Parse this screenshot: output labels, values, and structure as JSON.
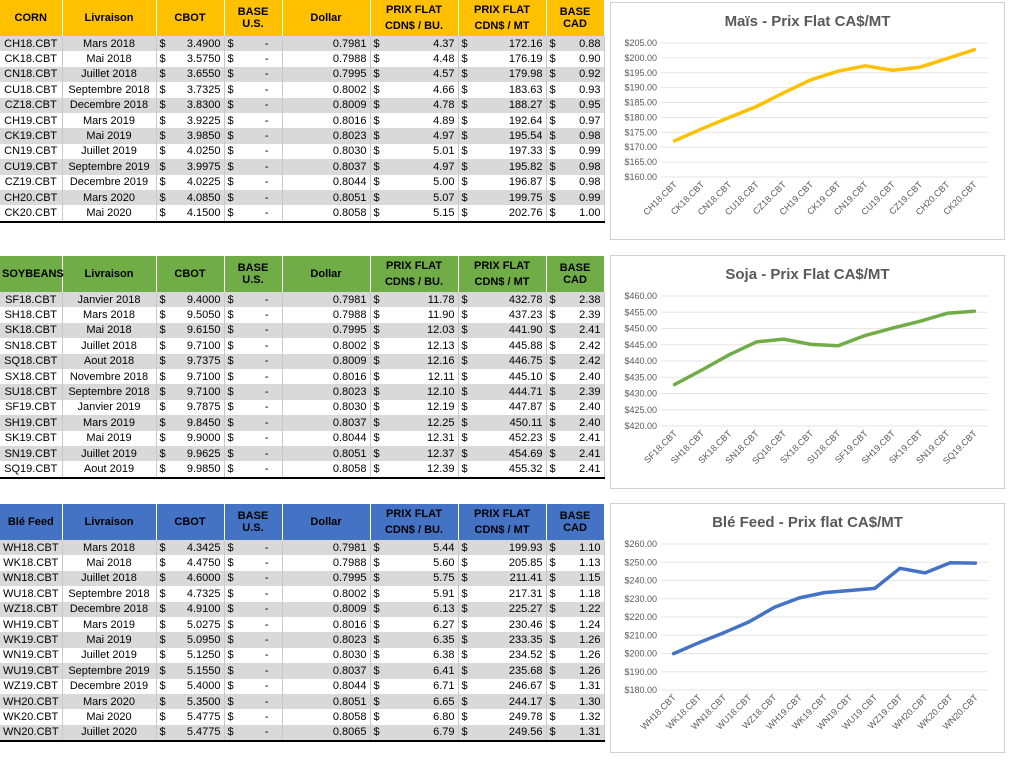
{
  "colors": {
    "corn": "#ffc000",
    "soy": "#70ad47",
    "wheat": "#4472c4"
  },
  "corn": {
    "headers": [
      "CORN",
      "Livraison",
      "CBOT",
      "BASE U.S.",
      "Dollar",
      "PRIX FLAT",
      "CDN$ / BU.",
      "PRIX FLAT",
      "CDN$ / MT",
      "BASE CAD"
    ],
    "rows": [
      [
        "CH18.CBT",
        "Mars 2018",
        "$",
        "3.4900",
        "$",
        "-",
        "0.7981",
        "$",
        "4.37",
        "$",
        "172.16",
        "$",
        "0.88"
      ],
      [
        "CK18.CBT",
        "Mai 2018",
        "$",
        "3.5750",
        "$",
        "-",
        "0.7988",
        "$",
        "4.48",
        "$",
        "176.19",
        "$",
        "0.90"
      ],
      [
        "CN18.CBT",
        "Juillet 2018",
        "$",
        "3.6550",
        "$",
        "-",
        "0.7995",
        "$",
        "4.57",
        "$",
        "179.98",
        "$",
        "0.92"
      ],
      [
        "CU18.CBT",
        "Septembre 2018",
        "$",
        "3.7325",
        "$",
        "-",
        "0.8002",
        "$",
        "4.66",
        "$",
        "183.63",
        "$",
        "0.93"
      ],
      [
        "CZ18.CBT",
        "Decembre 2018",
        "$",
        "3.8300",
        "$",
        "-",
        "0.8009",
        "$",
        "4.78",
        "$",
        "188.27",
        "$",
        "0.95"
      ],
      [
        "CH19.CBT",
        "Mars 2019",
        "$",
        "3.9225",
        "$",
        "-",
        "0.8016",
        "$",
        "4.89",
        "$",
        "192.64",
        "$",
        "0.97"
      ],
      [
        "CK19.CBT",
        "Mai 2019",
        "$",
        "3.9850",
        "$",
        "-",
        "0.8023",
        "$",
        "4.97",
        "$",
        "195.54",
        "$",
        "0.98"
      ],
      [
        "CN19.CBT",
        "Juillet 2019",
        "$",
        "4.0250",
        "$",
        "-",
        "0.8030",
        "$",
        "5.01",
        "$",
        "197.33",
        "$",
        "0.99"
      ],
      [
        "CU19.CBT",
        "Septembre 2019",
        "$",
        "3.9975",
        "$",
        "-",
        "0.8037",
        "$",
        "4.97",
        "$",
        "195.82",
        "$",
        "0.98"
      ],
      [
        "CZ19.CBT",
        "Decembre 2019",
        "$",
        "4.0225",
        "$",
        "-",
        "0.8044",
        "$",
        "5.00",
        "$",
        "196.87",
        "$",
        "0.98"
      ],
      [
        "CH20.CBT",
        "Mars 2020",
        "$",
        "4.0850",
        "$",
        "-",
        "0.8051",
        "$",
        "5.07",
        "$",
        "199.75",
        "$",
        "0.99"
      ],
      [
        "CK20.CBT",
        "Mai 2020",
        "$",
        "4.1500",
        "$",
        "-",
        "0.8058",
        "$",
        "5.15",
        "$",
        "202.76",
        "$",
        "1.00"
      ]
    ]
  },
  "soy": {
    "headers": [
      "SOYBEANS",
      "Livraison",
      "CBOT",
      "BASE U.S.",
      "Dollar",
      "PRIX FLAT",
      "CDN$ / BU.",
      "PRIX FLAT",
      "CDN$ / MT",
      "BASE CAD"
    ],
    "rows": [
      [
        "SF18.CBT",
        "Janvier 2018",
        "$",
        "9.4000",
        "$",
        "-",
        "0.7981",
        "$",
        "11.78",
        "$",
        "432.78",
        "$",
        "2.38"
      ],
      [
        "SH18.CBT",
        "Mars 2018",
        "$",
        "9.5050",
        "$",
        "-",
        "0.7988",
        "$",
        "11.90",
        "$",
        "437.23",
        "$",
        "2.39"
      ],
      [
        "SK18.CBT",
        "Mai 2018",
        "$",
        "9.6150",
        "$",
        "-",
        "0.7995",
        "$",
        "12.03",
        "$",
        "441.90",
        "$",
        "2.41"
      ],
      [
        "SN18.CBT",
        "Juillet 2018",
        "$",
        "9.7100",
        "$",
        "-",
        "0.8002",
        "$",
        "12.13",
        "$",
        "445.88",
        "$",
        "2.42"
      ],
      [
        "SQ18.CBT",
        "Aout 2018",
        "$",
        "9.7375",
        "$",
        "-",
        "0.8009",
        "$",
        "12.16",
        "$",
        "446.75",
        "$",
        "2.42"
      ],
      [
        "SX18.CBT",
        "Novembre 2018",
        "$",
        "9.7100",
        "$",
        "-",
        "0.8016",
        "$",
        "12.11",
        "$",
        "445.10",
        "$",
        "2.40"
      ],
      [
        "SU18.CBT",
        "Septembre 2018",
        "$",
        "9.7100",
        "$",
        "-",
        "0.8023",
        "$",
        "12.10",
        "$",
        "444.71",
        "$",
        "2.39"
      ],
      [
        "SF19.CBT",
        "Janvier 2019",
        "$",
        "9.7875",
        "$",
        "-",
        "0.8030",
        "$",
        "12.19",
        "$",
        "447.87",
        "$",
        "2.40"
      ],
      [
        "SH19.CBT",
        "Mars 2019",
        "$",
        "9.8450",
        "$",
        "-",
        "0.8037",
        "$",
        "12.25",
        "$",
        "450.11",
        "$",
        "2.40"
      ],
      [
        "SK19.CBT",
        "Mai 2019",
        "$",
        "9.9000",
        "$",
        "-",
        "0.8044",
        "$",
        "12.31",
        "$",
        "452.23",
        "$",
        "2.41"
      ],
      [
        "SN19.CBT",
        "Juillet 2019",
        "$",
        "9.9625",
        "$",
        "-",
        "0.8051",
        "$",
        "12.37",
        "$",
        "454.69",
        "$",
        "2.41"
      ],
      [
        "SQ19.CBT",
        "Aout 2019",
        "$",
        "9.9850",
        "$",
        "-",
        "0.8058",
        "$",
        "12.39",
        "$",
        "455.32",
        "$",
        "2.41"
      ]
    ]
  },
  "wheat": {
    "headers": [
      "Blé Feed",
      "Livraison",
      "CBOT",
      "BASE U.S.",
      "Dollar",
      "PRIX FLAT",
      "CDN$ / BU.",
      "PRIX FLAT",
      "CDN$ / MT",
      "BASE CAD"
    ],
    "rows": [
      [
        "WH18.CBT",
        "Mars 2018",
        "$",
        "4.3425",
        "$",
        "-",
        "0.7981",
        "$",
        "5.44",
        "$",
        "199.93",
        "$",
        "1.10"
      ],
      [
        "WK18.CBT",
        "Mai 2018",
        "$",
        "4.4750",
        "$",
        "-",
        "0.7988",
        "$",
        "5.60",
        "$",
        "205.85",
        "$",
        "1.13"
      ],
      [
        "WN18.CBT",
        "Juillet 2018",
        "$",
        "4.6000",
        "$",
        "-",
        "0.7995",
        "$",
        "5.75",
        "$",
        "211.41",
        "$",
        "1.15"
      ],
      [
        "WU18.CBT",
        "Septembre 2018",
        "$",
        "4.7325",
        "$",
        "-",
        "0.8002",
        "$",
        "5.91",
        "$",
        "217.31",
        "$",
        "1.18"
      ],
      [
        "WZ18.CBT",
        "Decembre 2018",
        "$",
        "4.9100",
        "$",
        "-",
        "0.8009",
        "$",
        "6.13",
        "$",
        "225.27",
        "$",
        "1.22"
      ],
      [
        "WH19.CBT",
        "Mars 2019",
        "$",
        "5.0275",
        "$",
        "-",
        "0.8016",
        "$",
        "6.27",
        "$",
        "230.46",
        "$",
        "1.24"
      ],
      [
        "WK19.CBT",
        "Mai 2019",
        "$",
        "5.0950",
        "$",
        "-",
        "0.8023",
        "$",
        "6.35",
        "$",
        "233.35",
        "$",
        "1.26"
      ],
      [
        "WN19.CBT",
        "Juillet 2019",
        "$",
        "5.1250",
        "$",
        "-",
        "0.8030",
        "$",
        "6.38",
        "$",
        "234.52",
        "$",
        "1.26"
      ],
      [
        "WU19.CBT",
        "Septembre 2019",
        "$",
        "5.1550",
        "$",
        "-",
        "0.8037",
        "$",
        "6.41",
        "$",
        "235.68",
        "$",
        "1.26"
      ],
      [
        "WZ19.CBT",
        "Decembre 2019",
        "$",
        "5.4000",
        "$",
        "-",
        "0.8044",
        "$",
        "6.71",
        "$",
        "246.67",
        "$",
        "1.31"
      ],
      [
        "WH20.CBT",
        "Mars 2020",
        "$",
        "5.3500",
        "$",
        "-",
        "0.8051",
        "$",
        "6.65",
        "$",
        "244.17",
        "$",
        "1.30"
      ],
      [
        "WK20.CBT",
        "Mai 2020",
        "$",
        "5.4775",
        "$",
        "-",
        "0.8058",
        "$",
        "6.80",
        "$",
        "249.78",
        "$",
        "1.32"
      ],
      [
        "WN20.CBT",
        "Juillet 2020",
        "$",
        "5.4775",
        "$",
        "-",
        "0.8065",
        "$",
        "6.79",
        "$",
        "249.56",
        "$",
        "1.31"
      ]
    ]
  },
  "chart_data": [
    {
      "key": "corn",
      "type": "line",
      "title": "Maïs - Prix Flat CA$/MT",
      "color": "#ffc000",
      "categories": [
        "CH18.CBT",
        "CK18.CBT",
        "CN18.CBT",
        "CU18.CBT",
        "CZ18.CBT",
        "CH19.CBT",
        "CK19.CBT",
        "CN19.CBT",
        "CU19.CBT",
        "CZ19.CBT",
        "CH20.CBT",
        "CK20.CBT"
      ],
      "values": [
        172.16,
        176.19,
        179.98,
        183.63,
        188.27,
        192.64,
        195.54,
        197.33,
        195.82,
        196.87,
        199.75,
        202.76
      ],
      "ylim": [
        160,
        205
      ],
      "ystep": 5,
      "grid": true,
      "legend": "none"
    },
    {
      "key": "soy",
      "type": "line",
      "title": "Soja - Prix Flat CA$/MT",
      "color": "#70ad47",
      "categories": [
        "SF18.CBT",
        "SH18.CBT",
        "SK18.CBT",
        "SN18.CBT",
        "SQ18.CBT",
        "SX18.CBT",
        "SU18.CBT",
        "SF19.CBT",
        "SH19.CBT",
        "SK19.CBT",
        "SN19.CBT",
        "SQ19.CBT"
      ],
      "values": [
        432.78,
        437.23,
        441.9,
        445.88,
        446.75,
        445.1,
        444.71,
        447.87,
        450.11,
        452.23,
        454.69,
        455.32
      ],
      "ylim": [
        420,
        460
      ],
      "ystep": 5,
      "grid": true,
      "legend": "none"
    },
    {
      "key": "wheat",
      "type": "line",
      "title": "Blé Feed - Prix flat CA$/MT",
      "color": "#4472c4",
      "categories": [
        "WH18.CBT",
        "WK18.CBT",
        "WN18.CBT",
        "WU18.CBT",
        "WZ18.CBT",
        "WH19.CBT",
        "WK19.CBT",
        "WN19.CBT",
        "WU19.CBT",
        "WZ19.CBT",
        "WH20.CBT",
        "WK20.CBT",
        "WN20.CBT"
      ],
      "values": [
        199.93,
        205.85,
        211.41,
        217.31,
        225.27,
        230.46,
        233.35,
        234.52,
        235.68,
        246.67,
        244.17,
        249.78,
        249.56
      ],
      "ylim": [
        180,
        260
      ],
      "ystep": 10,
      "grid": true,
      "legend": "none"
    }
  ]
}
